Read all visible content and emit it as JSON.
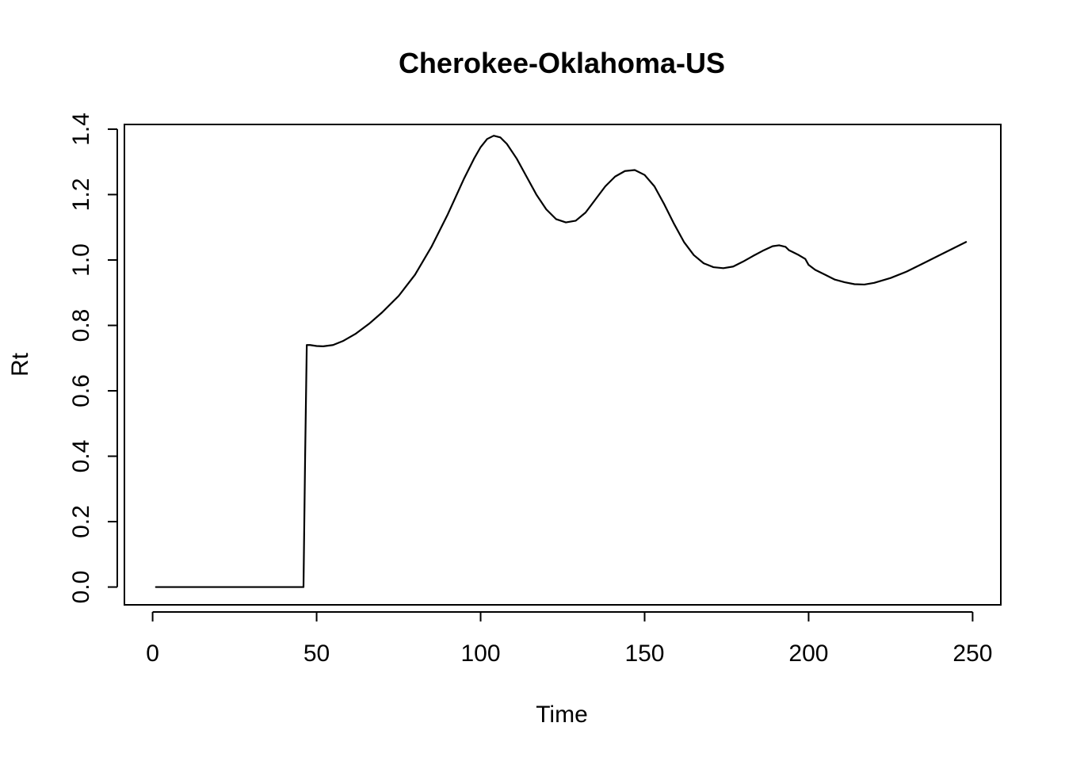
{
  "chart_data": {
    "type": "line",
    "title": "Cherokee-Oklahoma-US",
    "xlabel": "Time",
    "ylabel": "Rt",
    "xlim": [
      -8.6,
      258.6
    ],
    "ylim": [
      -0.0544,
      1.4144
    ],
    "xticks": [
      0,
      50,
      100,
      150,
      200,
      250
    ],
    "yticks": [
      0.0,
      0.2,
      0.4,
      0.6,
      0.8,
      1.0,
      1.2,
      1.4
    ],
    "xtick_labels": [
      "0",
      "50",
      "100",
      "150",
      "200",
      "250"
    ],
    "ytick_labels": [
      "0.0",
      "0.2",
      "0.4",
      "0.6",
      "0.8",
      "1.0",
      "1.2",
      "1.4"
    ],
    "grid": false,
    "series": [
      {
        "name": "Rt",
        "color": "#000000",
        "x": [
          1,
          46,
          46.5,
          47,
          48,
          50,
          52,
          55,
          58,
          62,
          66,
          70,
          75,
          80,
          85,
          90,
          95,
          98,
          100,
          102,
          104,
          106,
          108,
          111,
          114,
          117,
          120,
          123,
          126,
          129,
          132,
          135,
          138,
          141,
          144,
          147,
          150,
          153,
          156,
          159,
          162,
          165,
          168,
          171,
          174,
          177,
          180,
          183,
          186,
          189,
          191,
          193,
          194,
          195,
          197,
          199,
          200,
          202,
          205,
          208,
          211,
          214,
          217,
          220,
          225,
          230,
          235,
          240,
          244,
          248
        ],
        "y": [
          0.0,
          0.0,
          0.4,
          0.74,
          0.74,
          0.737,
          0.736,
          0.74,
          0.752,
          0.775,
          0.805,
          0.84,
          0.89,
          0.955,
          1.04,
          1.14,
          1.25,
          1.31,
          1.345,
          1.37,
          1.38,
          1.375,
          1.355,
          1.31,
          1.255,
          1.2,
          1.155,
          1.125,
          1.115,
          1.12,
          1.145,
          1.185,
          1.225,
          1.255,
          1.272,
          1.275,
          1.26,
          1.225,
          1.17,
          1.11,
          1.055,
          1.015,
          0.99,
          0.978,
          0.975,
          0.98,
          0.995,
          1.012,
          1.028,
          1.042,
          1.045,
          1.04,
          1.03,
          1.025,
          1.015,
          1.003,
          0.985,
          0.97,
          0.955,
          0.94,
          0.932,
          0.926,
          0.925,
          0.93,
          0.945,
          0.965,
          0.99,
          1.015,
          1.035,
          1.055
        ]
      }
    ]
  }
}
